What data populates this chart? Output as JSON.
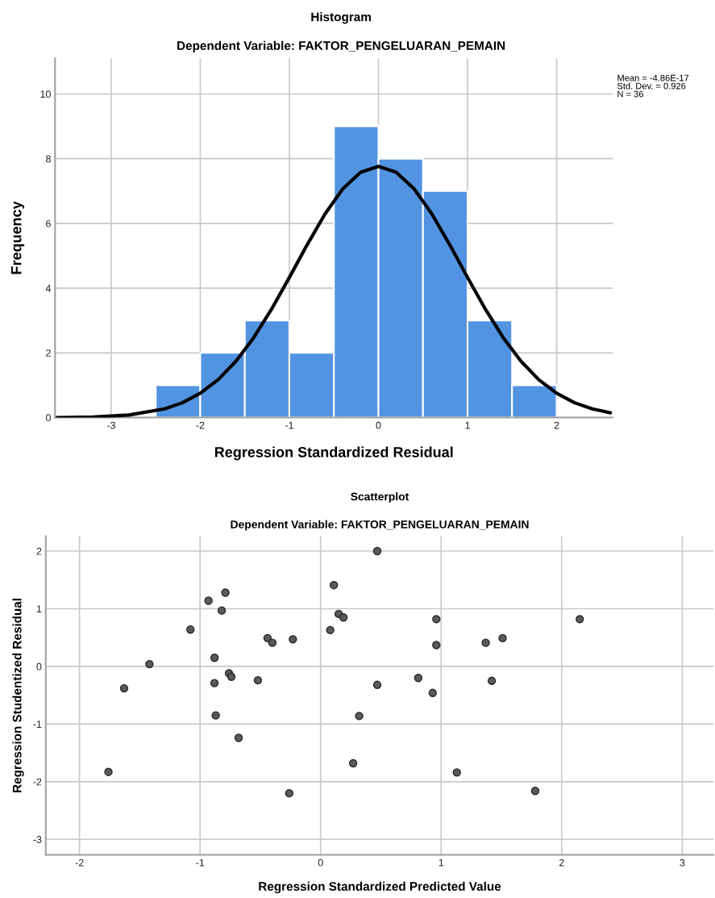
{
  "chart_data": [
    {
      "type": "histogram",
      "title": "Histogram",
      "subtitle": "Dependent Variable: FAKTOR_PENGELUARAN_PEMAIN",
      "xlabel": "Regression Standardized Residual",
      "ylabel": "Frequency",
      "bins": [
        -2.5,
        -2.0,
        -1.5,
        -1.0,
        -0.5,
        0.0,
        0.5,
        1.0,
        1.5,
        2.0
      ],
      "series": [
        {
          "type": "histogram",
          "color": "#5294e2",
          "values": [
            1,
            2,
            3,
            2,
            9,
            8,
            7,
            3,
            1
          ]
        },
        {
          "type": "line",
          "color": "#000000",
          "x": [
            -3.6,
            -3.2,
            -2.8,
            -2.4,
            -2.2,
            -2.0,
            -1.8,
            -1.6,
            -1.4,
            -1.2,
            -1.0,
            -0.8,
            -0.6,
            -0.4,
            -0.2,
            0.0,
            0.2,
            0.4,
            0.6,
            0.8,
            1.0,
            1.2,
            1.4,
            1.6,
            1.8,
            2.0,
            2.2,
            2.4,
            2.6
          ],
          "values": [
            0.0,
            0.02,
            0.08,
            0.27,
            0.46,
            0.75,
            1.17,
            1.74,
            2.47,
            3.35,
            4.33,
            5.34,
            6.29,
            7.07,
            7.58,
            7.76,
            7.58,
            7.07,
            6.29,
            5.34,
            4.33,
            3.35,
            2.47,
            1.74,
            1.17,
            0.75,
            0.46,
            0.27,
            0.15
          ]
        }
      ],
      "xlim": [
        -3.63,
        2.63
      ],
      "xticks": [
        -3,
        -2,
        -1,
        0,
        1,
        2
      ],
      "ylim": [
        0,
        11.1
      ],
      "yticks": [
        0,
        2,
        4,
        6,
        8,
        10
      ],
      "grid": true,
      "annotations": [
        "Mean = -4.86E-17",
        "Std. Dev. = 0.926",
        "N = 36"
      ]
    },
    {
      "type": "scatter",
      "title": "Scatterplot",
      "subtitle": "Dependent Variable: FAKTOR_PENGELUARAN_PEMAIN",
      "xlabel": "Regression Standardized Predicted Value",
      "ylabel": "Regression Studentized Residual",
      "series": [
        {
          "color": "#5a5a5a",
          "x": [
            0.47,
            0.11,
            -0.79,
            -0.93,
            -0.82,
            0.15,
            0.19,
            -1.08,
            0.08,
            -0.44,
            -0.4,
            -0.23,
            -0.88,
            -1.42,
            -0.76,
            -0.74,
            -0.52,
            -0.88,
            -1.63,
            0.47,
            -0.87,
            0.32,
            -0.68,
            -1.76,
            0.27,
            -0.26,
            0.96,
            0.96,
            1.37,
            1.51,
            2.15,
            0.81,
            0.93,
            1.42,
            1.13,
            1.78
          ],
          "values": [
            2.0,
            1.41,
            1.28,
            1.14,
            0.97,
            0.91,
            0.85,
            0.64,
            0.63,
            0.49,
            0.41,
            0.47,
            0.15,
            0.04,
            -0.12,
            -0.18,
            -0.24,
            -0.29,
            -0.38,
            -0.32,
            -0.85,
            -0.86,
            -1.24,
            -1.83,
            -1.68,
            -2.2,
            0.82,
            0.37,
            0.41,
            0.49,
            0.82,
            -0.2,
            -0.46,
            -0.25,
            -1.84,
            -2.16
          ]
        }
      ],
      "xlim": [
        -2.28,
        3.26
      ],
      "xticks": [
        -2,
        -1,
        0,
        1,
        2,
        3
      ],
      "ylim": [
        -3.27,
        2.26
      ],
      "yticks": [
        -3,
        -2,
        -1,
        0,
        1,
        2
      ],
      "grid": true,
      "marker": "circle"
    }
  ]
}
